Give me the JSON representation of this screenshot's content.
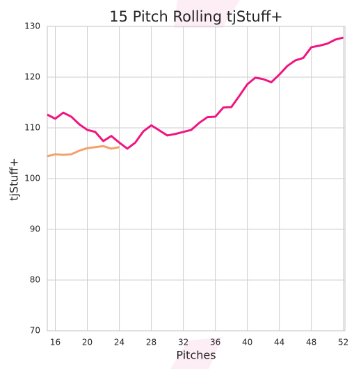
{
  "chart_data": {
    "type": "line",
    "title": "15 Pitch Rolling tjStuff+",
    "x_label": "Pitches",
    "y_label": "tjStuff+",
    "xlim": [
      15,
      52.2
    ],
    "ylim": [
      70,
      130
    ],
    "xticks": [
      16,
      20,
      24,
      28,
      32,
      36,
      40,
      44,
      48,
      52
    ],
    "yticks": [
      70,
      80,
      90,
      100,
      110,
      120,
      130
    ],
    "grid": true,
    "series": [
      {
        "color": "#f0157f",
        "x": [
          15,
          16,
          17,
          18,
          19,
          20,
          21,
          22,
          23,
          24,
          25,
          26,
          27,
          28,
          29,
          30,
          31,
          32,
          33,
          34,
          35,
          36,
          37,
          38,
          39,
          40,
          41,
          42,
          43,
          44,
          45,
          46,
          47,
          48,
          49,
          50,
          51,
          52
        ],
        "values": [
          112.6,
          111.8,
          113.0,
          112.2,
          110.7,
          109.6,
          109.2,
          107.4,
          108.4,
          107.1,
          105.9,
          107.1,
          109.3,
          110.5,
          109.5,
          108.5,
          108.8,
          109.2,
          109.6,
          111.0,
          112.1,
          112.2,
          114.0,
          114.1,
          116.3,
          118.6,
          119.9,
          119.6,
          119.0,
          120.5,
          122.2,
          123.3,
          123.8,
          125.9,
          126.2,
          126.6,
          127.4,
          127.8
        ]
      },
      {
        "color": "#f5a06a",
        "x": [
          15,
          16,
          17,
          18,
          19,
          20,
          21,
          22,
          23,
          24
        ],
        "values": [
          104.4,
          104.8,
          104.7,
          104.8,
          105.5,
          106.0,
          106.2,
          106.4,
          105.9,
          106.2
        ]
      }
    ]
  }
}
